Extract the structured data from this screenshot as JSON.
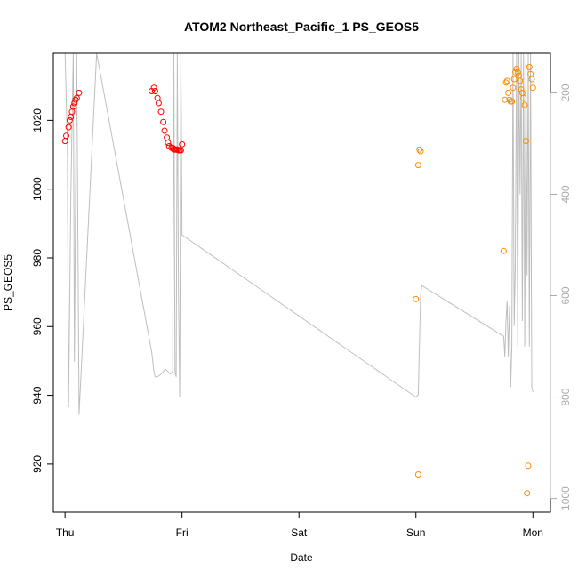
{
  "chart_data": {
    "type": "scatter",
    "title": "ATOM2 Northeast_Pacific_1 PS_GEOS5",
    "xlabel": "Date",
    "ylabel": "PS_GEOS5",
    "x_unit": "days",
    "xlim": [
      -0.1,
      4.15
    ],
    "ylim": [
      906,
      1039.5
    ],
    "x_ticks": [
      {
        "value": 0,
        "label": "Thu"
      },
      {
        "value": 1,
        "label": "Fri"
      },
      {
        "value": 2,
        "label": "Sat"
      },
      {
        "value": 3,
        "label": "Sun"
      },
      {
        "value": 4,
        "label": "Mon"
      }
    ],
    "y_ticks": [
      920,
      940,
      960,
      980,
      1000,
      1020
    ],
    "y2_label": "",
    "y2lim": [
      1027,
      122
    ],
    "y2_ticks": [
      200,
      400,
      600,
      800,
      1000
    ],
    "colors": {
      "series_red": "#ff0000",
      "series_orange": "#ff8c00",
      "altitude_line": "#bebebe"
    },
    "series": [
      {
        "color": "#ff0000",
        "marker": "open-circle",
        "x": [
          0.0,
          0.01,
          0.03,
          0.04,
          0.05,
          0.06,
          0.07,
          0.08,
          0.09,
          0.1,
          0.12,
          0.74,
          0.76,
          0.77,
          0.79,
          0.8,
          0.82,
          0.84,
          0.85,
          0.87,
          0.88,
          0.89,
          0.91,
          0.92,
          0.93,
          0.94,
          0.95,
          0.96,
          0.97,
          0.98,
          0.99,
          1.0
        ],
        "y": [
          1014,
          1015.5,
          1018,
          1020,
          1021,
          1022.5,
          1024,
          1025,
          1026,
          1026.5,
          1028,
          1028.5,
          1029.5,
          1028.5,
          1026.5,
          1025,
          1022.5,
          1019.5,
          1017,
          1015,
          1013.5,
          1012.5,
          1012,
          1012,
          1011.5,
          1011.5,
          1011.5,
          1011.5,
          1011.3,
          1011.3,
          1011.3,
          1013
        ]
      },
      {
        "color": "#ff8c00",
        "marker": "open-circle",
        "x": [
          3.0,
          3.02,
          3.03,
          3.04,
          3.02,
          3.75,
          3.76,
          3.77,
          3.78,
          3.79,
          3.8,
          3.81,
          3.82,
          3.83,
          3.84,
          3.85,
          3.86,
          3.87,
          3.88,
          3.89,
          3.9,
          3.91,
          3.92,
          3.93,
          3.94,
          3.95,
          3.96,
          3.97,
          3.98,
          3.99,
          4.0
        ],
        "y": [
          968,
          1007,
          1011.5,
          1011,
          917,
          982,
          1026,
          1031,
          1031.5,
          1028,
          1026,
          1025.5,
          1025.5,
          1029.5,
          1032,
          1034,
          1035,
          1034,
          1033,
          1031.5,
          1029,
          1028,
          1026.5,
          1024.5,
          1014,
          911.5,
          919.5,
          1035.5,
          1033.5,
          1032,
          1029.5
        ]
      }
    ],
    "altitude_line": {
      "color": "#bebebe",
      "x": [
        0.0,
        0.02,
        0.03,
        0.05,
        0.07,
        0.08,
        0.09,
        0.1,
        0.12,
        0.27,
        0.74,
        0.76,
        0.77,
        0.79,
        0.82,
        0.86,
        0.9,
        0.92,
        0.93,
        0.94,
        0.95,
        0.96,
        0.97,
        0.98,
        0.99,
        1.0,
        3.0,
        3.02,
        3.04,
        3.05,
        3.75,
        3.76,
        3.77,
        3.78,
        3.79,
        3.8,
        3.81,
        3.82,
        3.83,
        3.84,
        3.85,
        3.86,
        3.87,
        3.88,
        3.89,
        3.9,
        3.91,
        3.92,
        3.93,
        3.94,
        3.95,
        3.96,
        3.97,
        3.98,
        3.99,
        4.0
      ],
      "y": [
        122,
        300,
        820,
        400,
        122,
        730,
        400,
        122,
        835,
        122,
        710,
        750,
        760,
        760,
        755,
        745,
        755,
        750,
        122,
        750,
        760,
        122,
        600,
        800,
        122,
        480,
        800,
        795,
        600,
        580,
        680,
        720,
        650,
        610,
        720,
        620,
        780,
        700,
        122,
        660,
        540,
        122,
        700,
        122,
        400,
        122,
        650,
        122,
        700,
        122,
        560,
        122,
        700,
        122,
        780,
        790
      ]
    }
  }
}
